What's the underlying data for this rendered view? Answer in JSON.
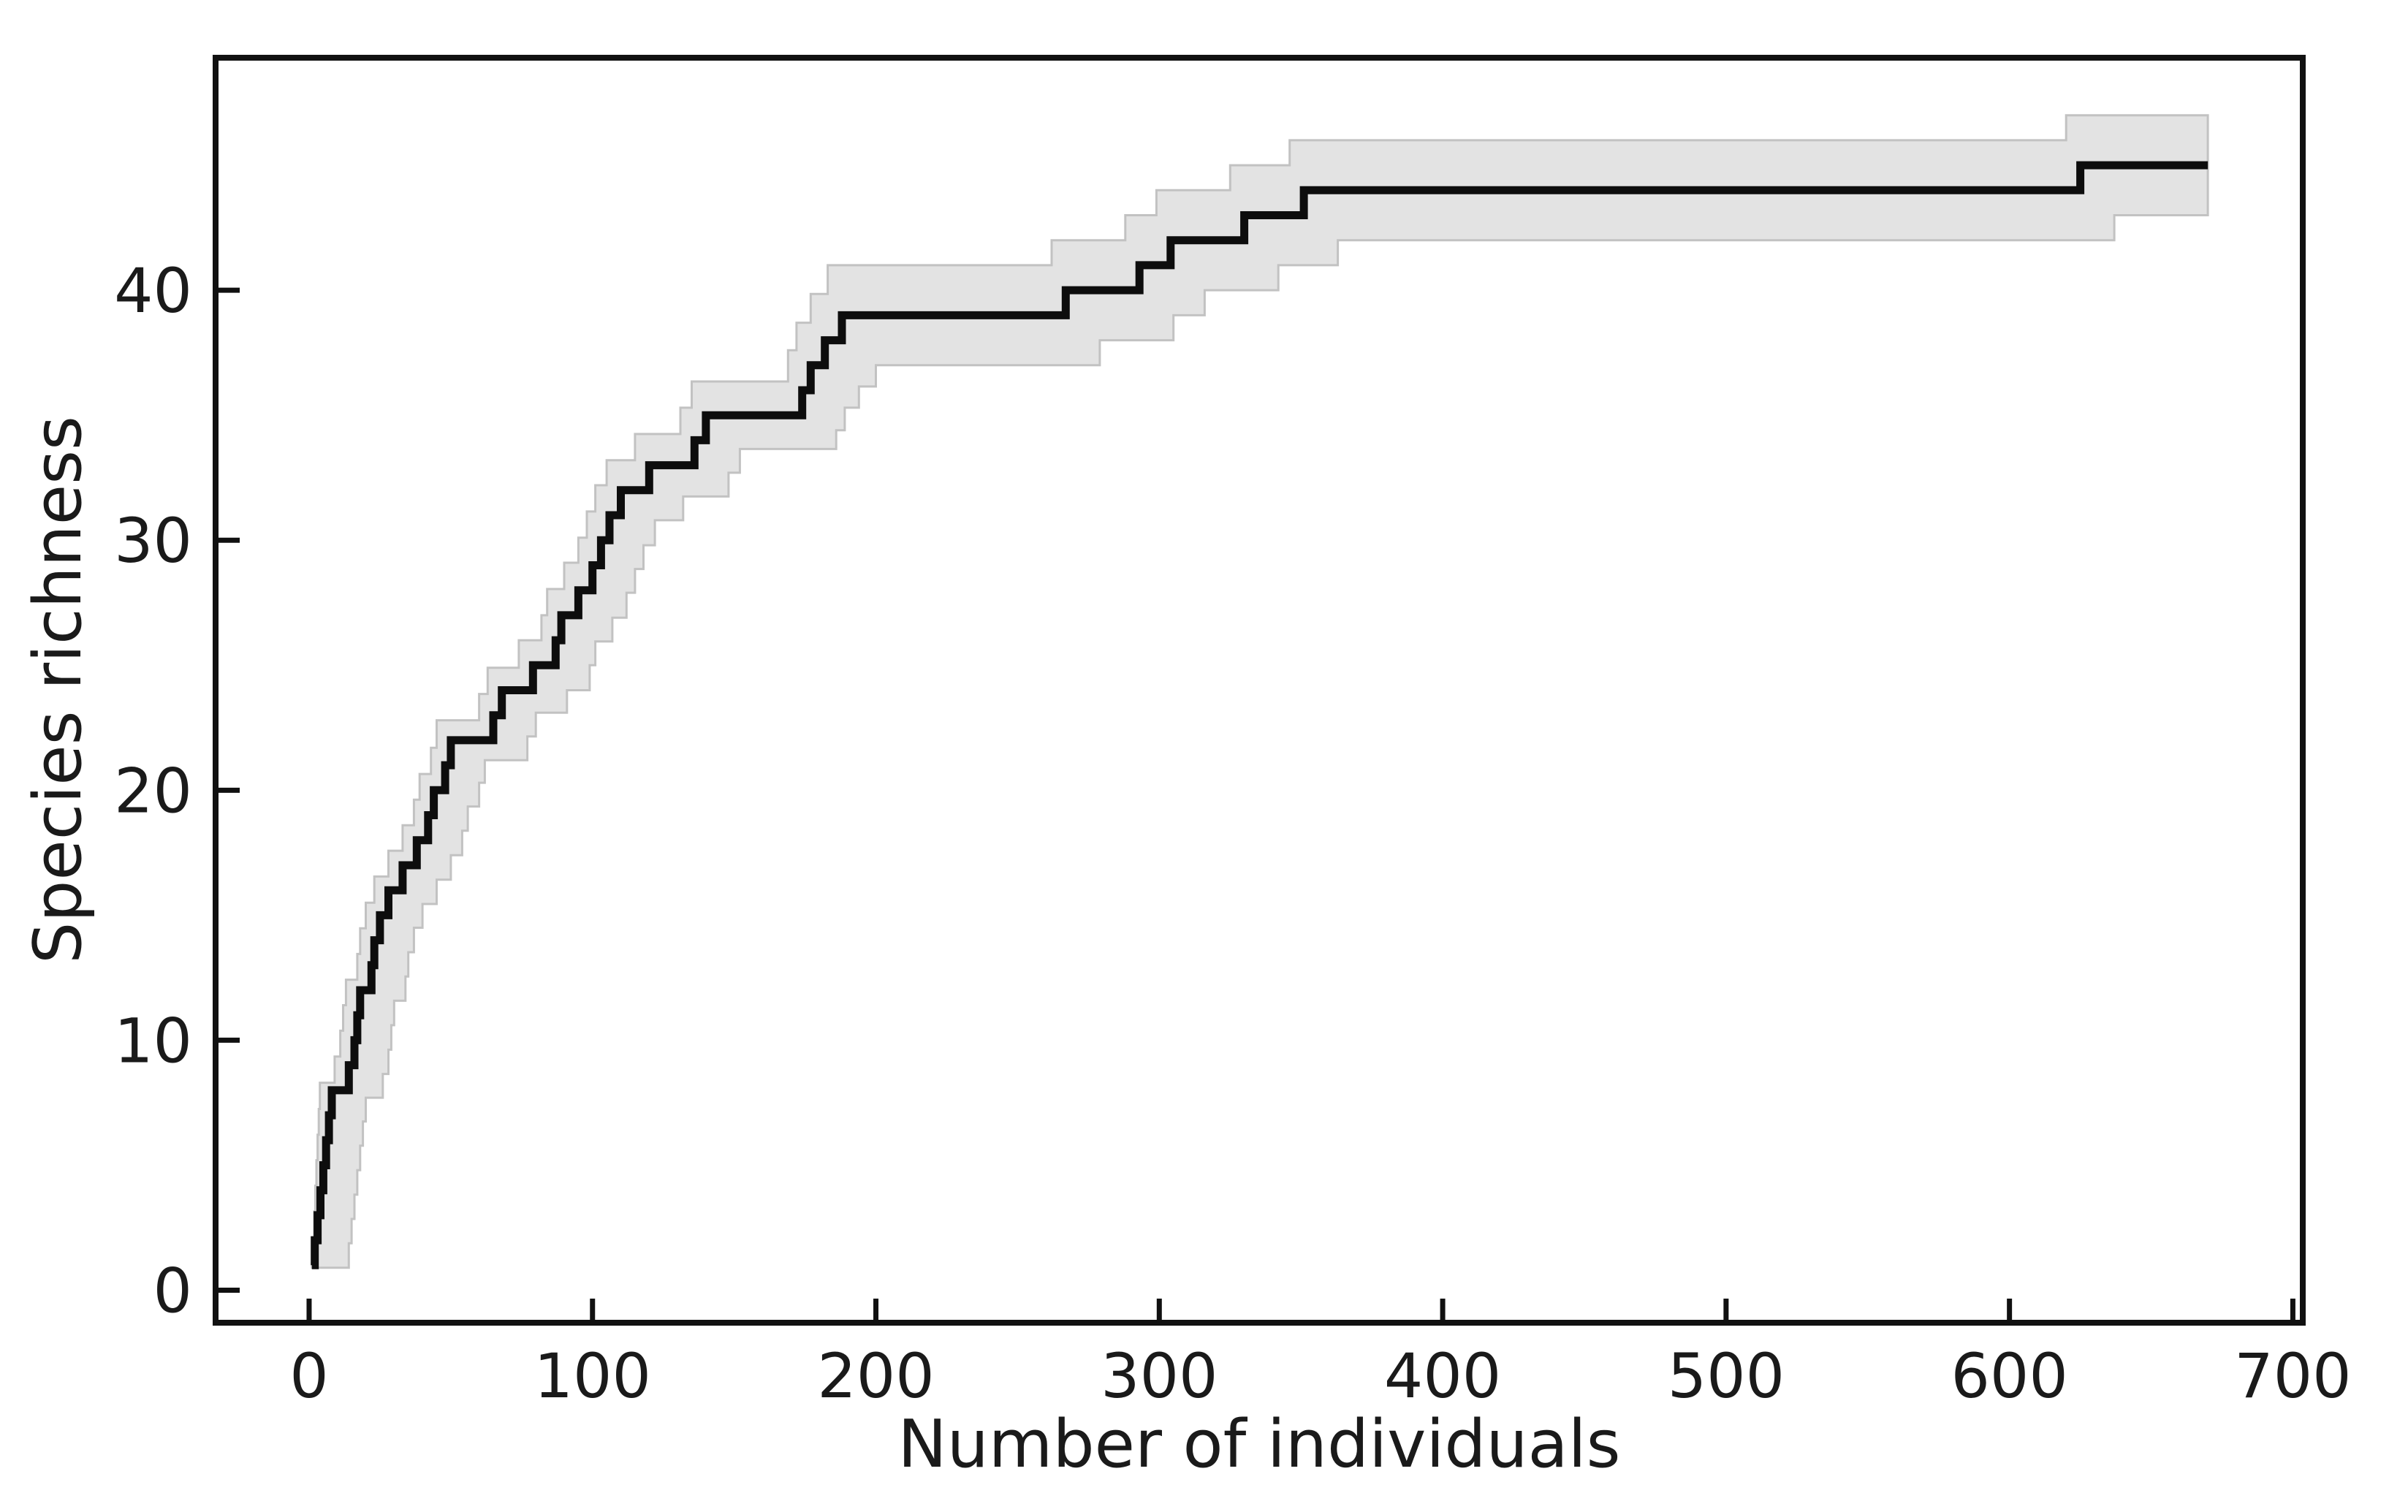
{
  "figure": {
    "background": "#ffffff",
    "kind": "species accumulation / rarefaction curve with confidence band"
  },
  "chart_data": {
    "type": "line",
    "subtype": "step-accumulation-curve-with-band",
    "title": "",
    "xlabel": "Number of individuals",
    "ylabel": "Species richness",
    "x_ticks": [
      0,
      100,
      200,
      300,
      400,
      500,
      600,
      700
    ],
    "y_ticks": [
      0,
      10,
      20,
      30,
      40
    ],
    "xlim": [
      -33,
      703.5
    ],
    "ylim": [
      -1.3,
      49.3
    ],
    "grid": false,
    "legend": null,
    "line_color": "#0d0d0d",
    "band_fill": "#e3e3e3",
    "band_edge": "#c2c2c2",
    "steps_format": "[number_of_individuals_where_richness_first_reached, species_richness, band_halfwidth]",
    "steps": [
      [
        1,
        1,
        0.1
      ],
      [
        2,
        2,
        0.12
      ],
      [
        3,
        3,
        0.15
      ],
      [
        4,
        4,
        0.18
      ],
      [
        5,
        5,
        0.2
      ],
      [
        6,
        6,
        0.22
      ],
      [
        7,
        7,
        0.25
      ],
      [
        8,
        8,
        0.3
      ],
      [
        14,
        9,
        0.35
      ],
      [
        16,
        10,
        0.38
      ],
      [
        17,
        11,
        0.4
      ],
      [
        18,
        12,
        0.42
      ],
      [
        22,
        13,
        0.45
      ],
      [
        23,
        14,
        0.48
      ],
      [
        25,
        15,
        0.5
      ],
      [
        28,
        16,
        0.55
      ],
      [
        33,
        17,
        0.58
      ],
      [
        38,
        18,
        0.6
      ],
      [
        42,
        19,
        0.62
      ],
      [
        44,
        20,
        0.65
      ],
      [
        48,
        21,
        0.7
      ],
      [
        50,
        22,
        0.8
      ],
      [
        65,
        23,
        0.85
      ],
      [
        68,
        24,
        0.9
      ],
      [
        79,
        25,
        1.0
      ],
      [
        87,
        26,
        1.0
      ],
      [
        89,
        27,
        1.05
      ],
      [
        95,
        28,
        1.1
      ],
      [
        100,
        29,
        1.1
      ],
      [
        103,
        30,
        1.15
      ],
      [
        106,
        31,
        1.2
      ],
      [
        110,
        32,
        1.2
      ],
      [
        120,
        33,
        1.25
      ],
      [
        136,
        34,
        1.3
      ],
      [
        140,
        35,
        1.35
      ],
      [
        174,
        36,
        1.6
      ],
      [
        177,
        37,
        1.7
      ],
      [
        182,
        38,
        1.85
      ],
      [
        188,
        39,
        2.0
      ],
      [
        267,
        40,
        2.0
      ],
      [
        293,
        41,
        2.0
      ],
      [
        304,
        42,
        2.0
      ],
      [
        330,
        43,
        2.0
      ],
      [
        351,
        44,
        2.0
      ],
      [
        625,
        45,
        2.0
      ]
    ],
    "end_x": 670,
    "band_step_lead": 5,
    "band_step_lag": 12,
    "final_richness": 45,
    "final_band": [
      43,
      47
    ]
  }
}
